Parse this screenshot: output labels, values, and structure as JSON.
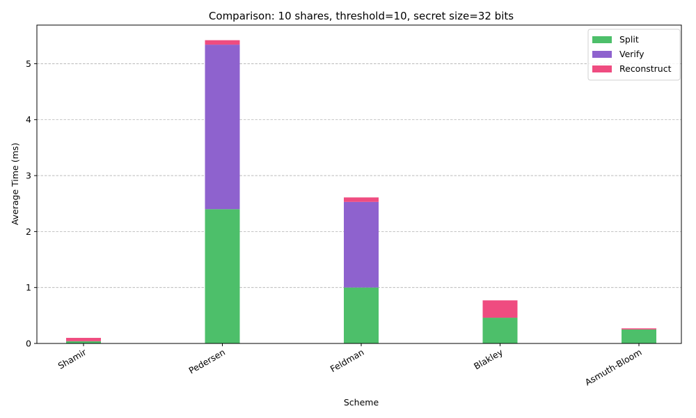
{
  "chart_data": {
    "type": "bar",
    "stacked": true,
    "title": "Comparison: 10 shares, threshold=10, secret size=32 bits",
    "xlabel": "Scheme",
    "ylabel": "Average Time (ms)",
    "categories": [
      "Shamir",
      "Pedersen",
      "Feldman",
      "Blakley",
      "Asmuth-Bloom"
    ],
    "series": [
      {
        "name": "Split",
        "color": "#4dbf6a",
        "values": [
          0.04,
          2.4,
          1.0,
          0.46,
          0.25
        ]
      },
      {
        "name": "Verify",
        "color": "#8e62ce",
        "values": [
          0.0,
          2.94,
          1.53,
          0.0,
          0.0
        ]
      },
      {
        "name": "Reconstruct",
        "color": "#ef4c80",
        "values": [
          0.06,
          0.08,
          0.08,
          0.31,
          0.02
        ]
      }
    ],
    "ylim": [
      0,
      5.69
    ],
    "yticks": [
      0,
      1,
      2,
      3,
      4,
      5
    ],
    "grid": "y-dashed",
    "legend_position": "top-right",
    "xtick_rotation": 30
  }
}
